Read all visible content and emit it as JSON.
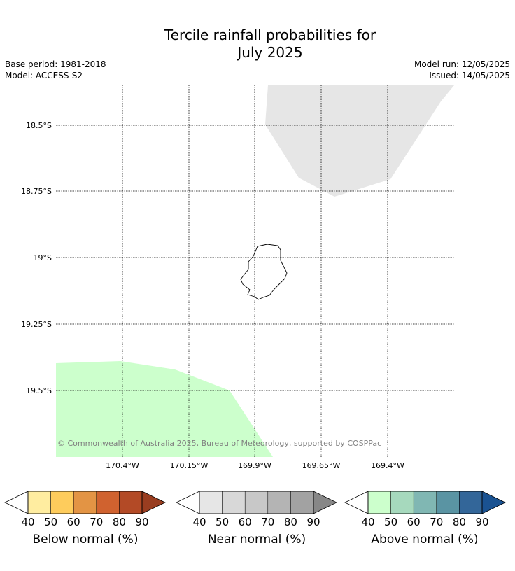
{
  "title_line1": "Tercile rainfall probabilities for",
  "title_line2": "July 2025",
  "base_period": "Base period: 1981-2018",
  "model": "Model: ACCESS-S2",
  "model_run": "Model run: 12/05/2025",
  "issued": "Issued: 14/05/2025",
  "copyright": "© Commonwealth of Australia 2025, Bureau of Meteorology, supported by COSPPac",
  "map": {
    "lat_labels": [
      "18.5°S",
      "18.75°S",
      "19°S",
      "19.25°S",
      "19.5°S"
    ],
    "lon_labels": [
      "170.4°W",
      "170.15°W",
      "169.9°W",
      "169.65°W",
      "169.4°W"
    ],
    "gridlines": "dotted",
    "regions": [
      {
        "category": "near_normal",
        "level": "40-50",
        "color": "#e6e6e6",
        "location": "north-east"
      },
      {
        "category": "above_normal",
        "level": "40-50",
        "color": "#ccffcc",
        "location": "south-west"
      }
    ],
    "island": "Niue"
  },
  "legends": [
    {
      "label": "Below normal (%)",
      "ticks": [
        "40",
        "50",
        "60",
        "70",
        "80",
        "90"
      ],
      "colors": [
        "#ffeda0",
        "#fecc5c",
        "#e39444",
        "#d0622f",
        "#b34a26",
        "#993d20"
      ]
    },
    {
      "label": "Near normal (%)",
      "ticks": [
        "40",
        "50",
        "60",
        "70",
        "80",
        "90"
      ],
      "colors": [
        "#e6e6e6",
        "#d8d8d8",
        "#c8c8c8",
        "#b4b4b4",
        "#a2a2a2",
        "#878787"
      ]
    },
    {
      "label": "Above normal (%)",
      "ticks": [
        "40",
        "50",
        "60",
        "70",
        "80",
        "90"
      ],
      "colors": [
        "#ccffcc",
        "#a6d9bd",
        "#80b7b3",
        "#5a94a3",
        "#336699",
        "#1a5291"
      ]
    }
  ]
}
